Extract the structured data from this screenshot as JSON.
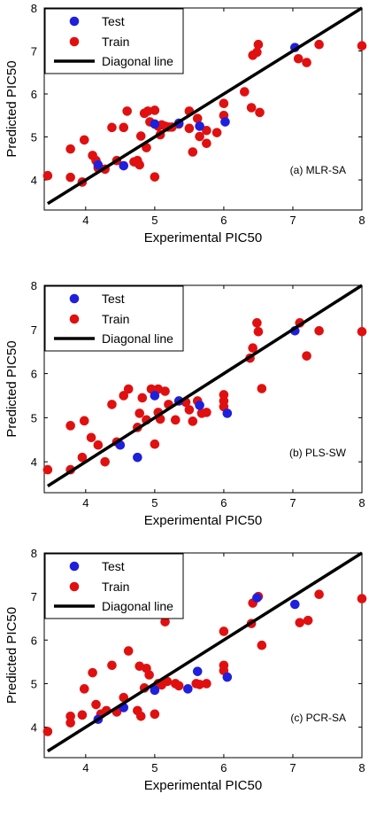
{
  "style": {
    "test_color": "#1f1fdc",
    "train_color": "#e01010",
    "diagonal_color": "#000000"
  },
  "chart_data": [
    {
      "type": "scatter",
      "annotation": "(a) MLR-SA",
      "xlabel": "Experimental PIC50",
      "ylabel": "Predicted PIC50",
      "xlim": [
        3.4,
        8
      ],
      "ylim": [
        3.3,
        8
      ],
      "xticks": [
        4,
        5,
        6,
        7,
        8
      ],
      "yticks": [
        4,
        5,
        6,
        7,
        8
      ],
      "legend": {
        "placement": "top-left",
        "entries": [
          "Test",
          "Train",
          "Diagonal line"
        ]
      },
      "diagonal": [
        [
          3.45,
          3.45
        ],
        [
          8,
          8
        ]
      ],
      "series": [
        {
          "name": "Test",
          "points": [
            [
              4.18,
              4.35
            ],
            [
              4.55,
              4.33
            ],
            [
              5.0,
              5.3
            ],
            [
              5.35,
              5.32
            ],
            [
              5.65,
              5.25
            ],
            [
              6.02,
              5.35
            ],
            [
              7.03,
              7.08
            ]
          ]
        },
        {
          "name": "Train",
          "points": [
            [
              3.45,
              4.1
            ],
            [
              3.78,
              4.72
            ],
            [
              3.78,
              4.06
            ],
            [
              3.95,
              3.95
            ],
            [
              3.98,
              4.93
            ],
            [
              4.1,
              4.57
            ],
            [
              4.15,
              4.45
            ],
            [
              4.18,
              4.28
            ],
            [
              4.28,
              4.25
            ],
            [
              4.38,
              5.22
            ],
            [
              4.45,
              4.45
            ],
            [
              4.55,
              5.22
            ],
            [
              4.6,
              5.6
            ],
            [
              4.7,
              4.42
            ],
            [
              4.75,
              4.45
            ],
            [
              4.78,
              4.35
            ],
            [
              4.8,
              5.02
            ],
            [
              4.85,
              5.55
            ],
            [
              4.88,
              4.75
            ],
            [
              4.9,
              5.6
            ],
            [
              4.93,
              5.35
            ],
            [
              5.0,
              5.62
            ],
            [
              5.0,
              4.07
            ],
            [
              5.05,
              5.25
            ],
            [
              5.08,
              5.05
            ],
            [
              5.1,
              5.28
            ],
            [
              5.15,
              5.25
            ],
            [
              5.2,
              5.23
            ],
            [
              5.25,
              5.23
            ],
            [
              5.35,
              5.3
            ],
            [
              5.5,
              5.6
            ],
            [
              5.5,
              5.2
            ],
            [
              5.55,
              4.65
            ],
            [
              5.62,
              5.43
            ],
            [
              5.65,
              5.01
            ],
            [
              5.75,
              5.15
            ],
            [
              5.75,
              4.85
            ],
            [
              5.9,
              5.1
            ],
            [
              6.0,
              5.78
            ],
            [
              6.0,
              5.5
            ],
            [
              6.3,
              6.05
            ],
            [
              6.4,
              5.68
            ],
            [
              6.42,
              6.9
            ],
            [
              6.48,
              6.97
            ],
            [
              6.5,
              7.15
            ],
            [
              6.52,
              5.57
            ],
            [
              7.08,
              6.82
            ],
            [
              7.2,
              6.73
            ],
            [
              7.38,
              7.15
            ],
            [
              8.0,
              7.12
            ]
          ]
        }
      ]
    },
    {
      "type": "scatter",
      "annotation": "(b) PLS-SW",
      "xlabel": "Experimental PIC50",
      "ylabel": "Predicted PIC50",
      "xlim": [
        3.4,
        8
      ],
      "ylim": [
        3.3,
        8
      ],
      "xticks": [
        4,
        5,
        6,
        7,
        8
      ],
      "yticks": [
        4,
        5,
        6,
        7,
        8
      ],
      "legend": {
        "placement": "top-left",
        "entries": [
          "Test",
          "Train",
          "Diagonal line"
        ]
      },
      "diagonal": [
        [
          3.45,
          3.45
        ],
        [
          8,
          8
        ]
      ],
      "series": [
        {
          "name": "Test",
          "points": [
            [
              4.5,
              4.38
            ],
            [
              4.75,
              4.1
            ],
            [
              5.0,
              5.5
            ],
            [
              5.35,
              5.38
            ],
            [
              5.65,
              5.28
            ],
            [
              6.05,
              5.1
            ],
            [
              7.03,
              6.97
            ]
          ]
        },
        {
          "name": "Train",
          "points": [
            [
              3.45,
              3.82
            ],
            [
              3.78,
              4.82
            ],
            [
              3.78,
              3.82
            ],
            [
              3.95,
              4.1
            ],
            [
              3.98,
              4.93
            ],
            [
              4.08,
              4.55
            ],
            [
              4.18,
              4.38
            ],
            [
              4.28,
              4.0
            ],
            [
              4.38,
              5.3
            ],
            [
              4.45,
              4.45
            ],
            [
              4.55,
              5.5
            ],
            [
              4.62,
              5.65
            ],
            [
              4.75,
              4.78
            ],
            [
              4.78,
              5.1
            ],
            [
              4.82,
              5.45
            ],
            [
              4.88,
              4.95
            ],
            [
              4.95,
              5.65
            ],
            [
              5.0,
              4.4
            ],
            [
              5.05,
              5.65
            ],
            [
              5.05,
              5.12
            ],
            [
              5.08,
              4.97
            ],
            [
              5.15,
              5.6
            ],
            [
              5.2,
              5.3
            ],
            [
              5.3,
              4.95
            ],
            [
              5.45,
              5.35
            ],
            [
              5.5,
              5.18
            ],
            [
              5.55,
              4.92
            ],
            [
              5.62,
              5.38
            ],
            [
              5.68,
              5.1
            ],
            [
              5.75,
              5.12
            ],
            [
              6.0,
              5.52
            ],
            [
              6.0,
              5.38
            ],
            [
              6.0,
              5.25
            ],
            [
              6.38,
              6.35
            ],
            [
              6.42,
              6.58
            ],
            [
              6.48,
              7.15
            ],
            [
              6.5,
              6.95
            ],
            [
              6.55,
              5.66
            ],
            [
              7.1,
              7.15
            ],
            [
              7.2,
              6.4
            ],
            [
              7.38,
              6.97
            ],
            [
              8.0,
              6.95
            ]
          ]
        }
      ]
    },
    {
      "type": "scatter",
      "annotation": "(c) PCR-SA",
      "xlabel": "Experimental PIC50",
      "ylabel": "Predicted PIC50",
      "xlim": [
        3.4,
        8
      ],
      "ylim": [
        3.3,
        8
      ],
      "xticks": [
        4,
        5,
        6,
        7,
        8
      ],
      "yticks": [
        4,
        5,
        6,
        7,
        8
      ],
      "legend": {
        "placement": "top-left",
        "entries": [
          "Test",
          "Train",
          "Diagonal line"
        ]
      },
      "diagonal": [
        [
          3.45,
          3.45
        ],
        [
          8,
          8
        ]
      ],
      "series": [
        {
          "name": "Test",
          "points": [
            [
              4.18,
              4.18
            ],
            [
              4.55,
              4.45
            ],
            [
              5.0,
              4.85
            ],
            [
              5.48,
              4.88
            ],
            [
              5.62,
              5.28
            ],
            [
              6.05,
              5.15
            ],
            [
              6.48,
              6.97
            ],
            [
              7.03,
              6.82
            ]
          ]
        },
        {
          "name": "Train",
          "points": [
            [
              3.45,
              3.9
            ],
            [
              3.78,
              4.1
            ],
            [
              3.78,
              4.25
            ],
            [
              3.95,
              4.28
            ],
            [
              3.98,
              4.88
            ],
            [
              4.1,
              5.25
            ],
            [
              4.15,
              4.52
            ],
            [
              4.22,
              4.3
            ],
            [
              4.3,
              4.38
            ],
            [
              4.38,
              5.42
            ],
            [
              4.45,
              4.35
            ],
            [
              4.55,
              4.68
            ],
            [
              4.62,
              5.75
            ],
            [
              4.75,
              4.38
            ],
            [
              4.78,
              5.4
            ],
            [
              4.8,
              4.25
            ],
            [
              4.85,
              4.9
            ],
            [
              4.88,
              5.35
            ],
            [
              4.92,
              5.2
            ],
            [
              5.0,
              4.3
            ],
            [
              5.05,
              5.0
            ],
            [
              5.1,
              4.97
            ],
            [
              5.15,
              6.42
            ],
            [
              5.18,
              5.05
            ],
            [
              5.3,
              5.0
            ],
            [
              5.35,
              4.95
            ],
            [
              5.6,
              5.0
            ],
            [
              5.65,
              4.98
            ],
            [
              5.75,
              5.0
            ],
            [
              6.0,
              6.2
            ],
            [
              6.0,
              5.42
            ],
            [
              6.0,
              5.3
            ],
            [
              6.4,
              6.38
            ],
            [
              6.42,
              6.85
            ],
            [
              6.5,
              7.0
            ],
            [
              6.55,
              5.88
            ],
            [
              7.1,
              6.4
            ],
            [
              7.22,
              6.45
            ],
            [
              7.38,
              7.05
            ],
            [
              8.0,
              6.95
            ]
          ]
        }
      ]
    }
  ]
}
